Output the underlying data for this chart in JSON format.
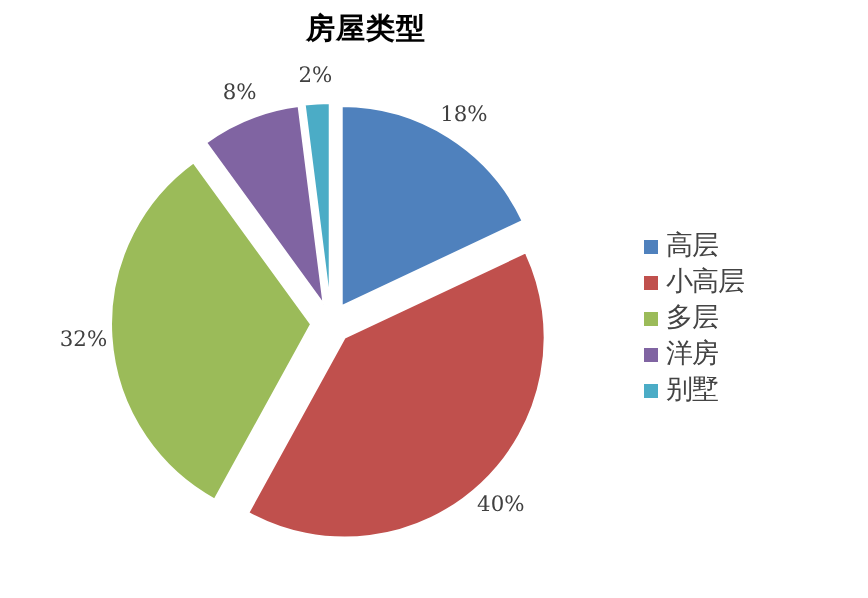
{
  "chart_data": {
    "type": "pie",
    "title": "房屋类型",
    "categories": [
      "高层",
      "小高层",
      "多层",
      "洋房",
      "别墅"
    ],
    "values": [
      18,
      40,
      32,
      8,
      2
    ],
    "colors": [
      "#4f81bd",
      "#c0504d",
      "#9bbb59",
      "#8064a2",
      "#4bacc6"
    ],
    "value_labels": [
      "18%",
      "40%",
      "32%",
      "8%",
      "2%"
    ],
    "legend": "right"
  }
}
